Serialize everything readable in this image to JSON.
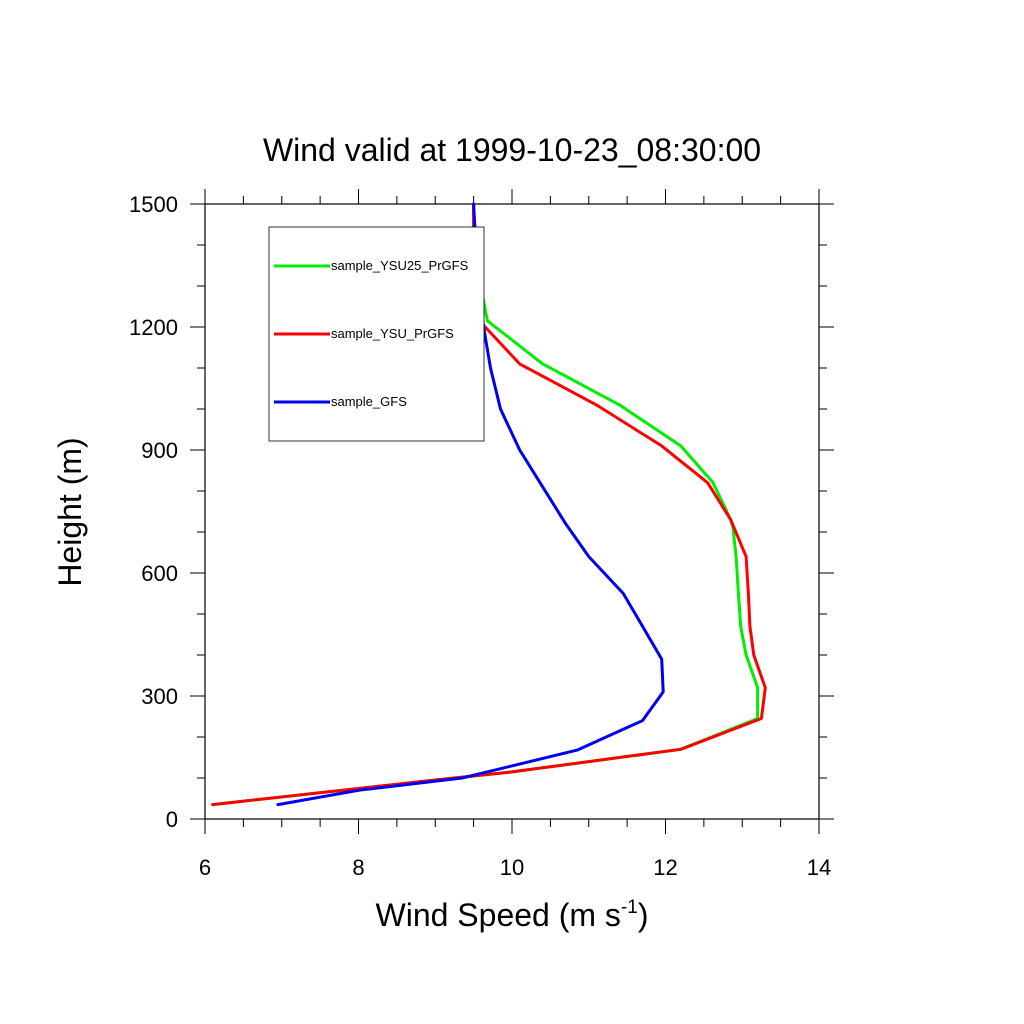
{
  "chart_data": {
    "type": "line",
    "title": "Wind valid at 1999-10-23_08:30:00",
    "xlabel_main": "Wind Speed (m s",
    "xlabel_sup": "-1",
    "xlabel_close": ")",
    "ylabel": "Height (m)",
    "xlim": [
      6,
      14
    ],
    "ylim": [
      0,
      1500
    ],
    "xticks": [
      6,
      8,
      10,
      12,
      14
    ],
    "yticks": [
      0,
      300,
      600,
      900,
      1200,
      1500
    ],
    "xtick_labels": [
      "6",
      "8",
      "10",
      "12",
      "14"
    ],
    "ytick_labels": [
      "0",
      "300",
      "600",
      "900",
      "1200",
      "1500"
    ],
    "legend_placement": "top-left",
    "grid": false,
    "series": [
      {
        "name": "sample_YSU25_PrGFS",
        "color": "#00ee00",
        "x": [
          6.1,
          9.0,
          10.0,
          12.2,
          13.2,
          13.2,
          13.05,
          12.98,
          12.95,
          12.92,
          12.88,
          12.85,
          12.62,
          12.2,
          11.4,
          10.4,
          9.68,
          9.58,
          9.52,
          9.5,
          9.5
        ],
        "y": [
          35,
          95,
          115,
          170,
          245,
          320,
          400,
          470,
          550,
          640,
          710,
          730,
          820,
          910,
          1010,
          1110,
          1215,
          1310,
          1400,
          1450,
          1500
        ]
      },
      {
        "name": "sample_YSU_PrGFS",
        "color": "#ff0000",
        "x": [
          6.1,
          9.0,
          10.0,
          12.2,
          13.25,
          13.3,
          13.15,
          13.1,
          13.08,
          13.05,
          12.85,
          12.55,
          11.95,
          11.1,
          10.1,
          9.6,
          9.52,
          9.5,
          9.5
        ],
        "y": [
          35,
          95,
          115,
          170,
          245,
          320,
          400,
          470,
          550,
          640,
          730,
          820,
          910,
          1010,
          1110,
          1210,
          1310,
          1400,
          1500
        ]
      },
      {
        "name": "sample_GFS",
        "color": "#0000ee",
        "x": [
          6.95,
          8.0,
          9.35,
          10.85,
          11.7,
          11.97,
          11.95,
          11.7,
          11.45,
          11.0,
          10.7,
          10.4,
          10.1,
          9.85,
          9.72,
          9.63,
          9.58,
          9.55,
          9.52,
          9.5
        ],
        "y": [
          35,
          70,
          100,
          168,
          240,
          310,
          390,
          470,
          550,
          640,
          720,
          810,
          900,
          1000,
          1100,
          1200,
          1280,
          1350,
          1430,
          1500
        ]
      }
    ]
  }
}
